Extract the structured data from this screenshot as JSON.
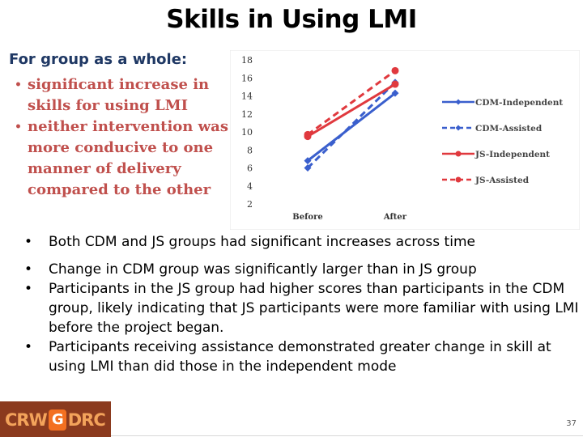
{
  "slide": {
    "title": "Skills in Using LMI",
    "group_heading": "For group as a whole:",
    "left_bullets": [
      "significant increase in skills for using LMI",
      "neither intervention was more conducive to one manner of delivery compared to the other"
    ],
    "bottom_bullets": [
      "Both CDM and JS groups had significant increases across time",
      "Change in CDM group was significantly larger than in JS group",
      "Participants in the JS group had higher scores than participants in the CDM group, likely indicating that JS participants were more familiar with using LMI before the project began.",
      "Participants receiving assistance demonstrated greater change in skill at using LMI than did those in the independent mode"
    ],
    "bullet_glyph": "•",
    "logo": {
      "left": "CRW",
      "mark": "G",
      "right": "DRC"
    },
    "page_number": "37"
  },
  "colors": {
    "title": "#000000",
    "heading": "#1f3864",
    "left_bullets": "#c0504d",
    "cdm": "#3a5fcd",
    "js": "#e0393e",
    "logo_bg": "#8b3a1e",
    "logo_text": "#f3a35b",
    "logo_mark": "#f37021"
  },
  "chart_data": {
    "type": "line",
    "categories": [
      "Before",
      "After"
    ],
    "ylim": [
      2,
      18
    ],
    "yticks": [
      2,
      4,
      6,
      8,
      10,
      12,
      14,
      16,
      18
    ],
    "grid": false,
    "legend_position": "right",
    "series": [
      {
        "name": "CDM-Independent",
        "values": [
          6.8,
          14.3
        ],
        "color": "#3a5fcd",
        "dash": "solid",
        "marker": "diamond"
      },
      {
        "name": "CDM-Assisted",
        "values": [
          6.0,
          15.5
        ],
        "color": "#3a5fcd",
        "dash": "dashed",
        "marker": "diamond"
      },
      {
        "name": "JS-Independent",
        "values": [
          9.5,
          15.3
        ],
        "color": "#e0393e",
        "dash": "solid",
        "marker": "circle"
      },
      {
        "name": "JS-Assisted",
        "values": [
          9.7,
          16.8
        ],
        "color": "#e0393e",
        "dash": "dashed",
        "marker": "circle"
      }
    ]
  }
}
